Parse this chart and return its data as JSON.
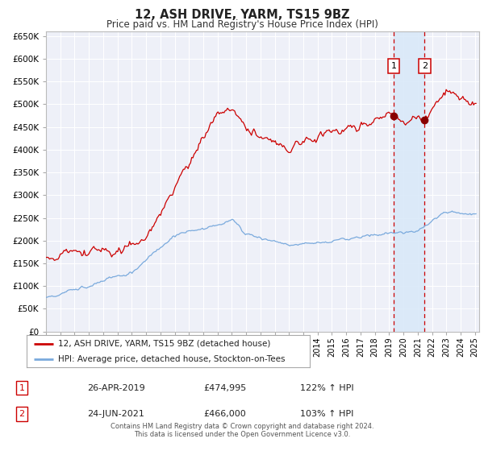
{
  "title": "12, ASH DRIVE, YARM, TS15 9BZ",
  "subtitle": "Price paid vs. HM Land Registry's House Price Index (HPI)",
  "background_color": "#ffffff",
  "plot_bg_color": "#eef0f8",
  "grid_color": "#ffffff",
  "red_line_color": "#cc0000",
  "blue_line_color": "#7aaadd",
  "marker1_date": 2019.32,
  "marker1_value": 474995,
  "marker2_date": 2021.48,
  "marker2_value": 466000,
  "vline1_x": 2019.32,
  "vline2_x": 2021.48,
  "shade_start": 2019.32,
  "shade_end": 2021.48,
  "legend_line1": "12, ASH DRIVE, YARM, TS15 9BZ (detached house)",
  "legend_line2": "HPI: Average price, detached house, Stockton-on-Tees",
  "table_row1": [
    "1",
    "26-APR-2019",
    "£474,995",
    "122% ↑ HPI"
  ],
  "table_row2": [
    "2",
    "24-JUN-2021",
    "£466,000",
    "103% ↑ HPI"
  ],
  "footer": "Contains HM Land Registry data © Crown copyright and database right 2024.\nThis data is licensed under the Open Government Licence v3.0.",
  "ylim": [
    0,
    660000
  ],
  "yticks": [
    0,
    50000,
    100000,
    150000,
    200000,
    250000,
    300000,
    350000,
    400000,
    450000,
    500000,
    550000,
    600000,
    650000
  ],
  "xlim_start": 1995.0,
  "xlim_end": 2025.3
}
